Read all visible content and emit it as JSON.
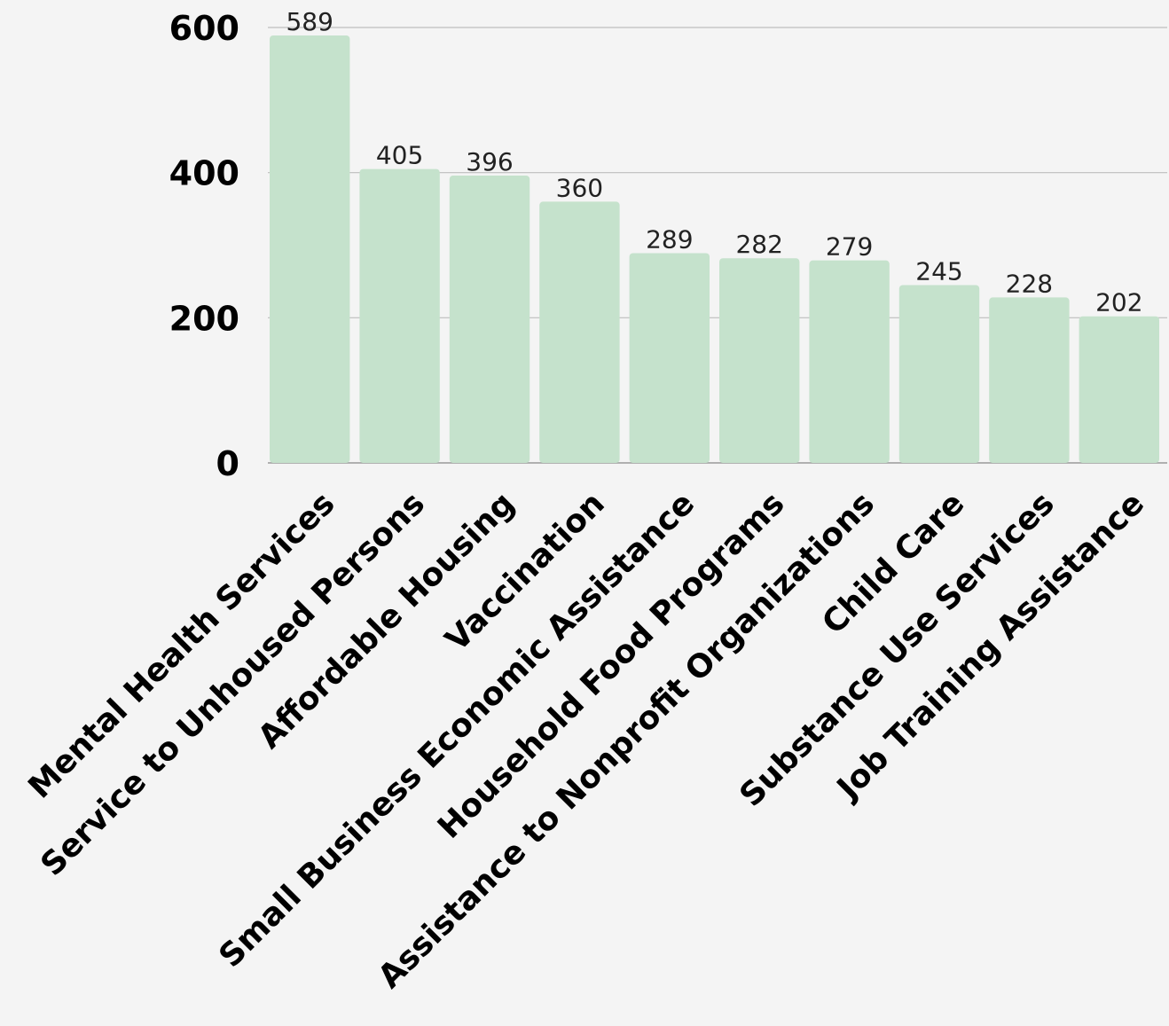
{
  "chart_data": {
    "type": "bar",
    "categories": [
      "Mental Health Services",
      "Service to Unhoused Persons",
      "Affordable Housing",
      "Vaccination",
      "Small Business Economic Assistance",
      "Household Food Programs",
      "Assistance to Nonprofit Organizations",
      "Child Care",
      "Substance Use Services",
      "Job Training Assistance"
    ],
    "values": [
      589,
      405,
      396,
      360,
      289,
      282,
      279,
      245,
      228,
      202
    ],
    "title": "",
    "xlabel": "",
    "ylabel": "",
    "ylim": [
      0,
      600
    ],
    "yticks": [
      0,
      200,
      400,
      600
    ],
    "grid": true,
    "data_labels": true,
    "bar_color": "#c5e2cc"
  }
}
